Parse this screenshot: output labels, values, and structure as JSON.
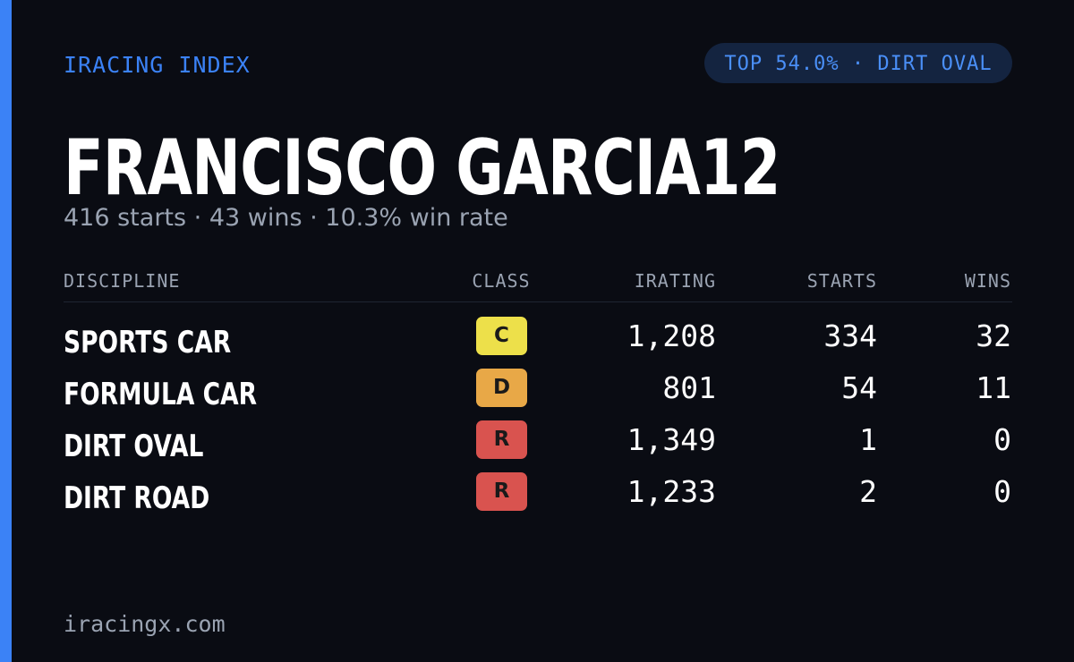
{
  "header": {
    "brand": "IRACING INDEX",
    "badge": "TOP 54.0% · DIRT OVAL"
  },
  "profile": {
    "name": "FRANCISCO GARCIA12",
    "summary": "416 starts · 43 wins · 10.3% win rate"
  },
  "table": {
    "columns": [
      "DISCIPLINE",
      "CLASS",
      "IRATING",
      "STARTS",
      "WINS"
    ],
    "rows": [
      [
        "SPORTS CAR",
        "C",
        "1,208",
        "334",
        "32"
      ],
      [
        "FORMULA CAR",
        "D",
        "801",
        "54",
        "11"
      ],
      [
        "DIRT OVAL",
        "R",
        "1,349",
        "1",
        "0"
      ],
      [
        "DIRT ROAD",
        "R",
        "1,233",
        "2",
        "0"
      ]
    ],
    "class_colors": {
      "C": "#ede04a",
      "D": "#e8a847",
      "R": "#d9534f"
    }
  },
  "footer": {
    "url": "iracingx.com"
  }
}
